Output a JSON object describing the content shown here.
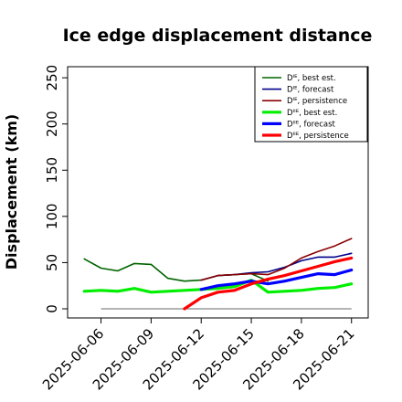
{
  "chart_data": {
    "type": "line",
    "title": "Ice edge displacement distance",
    "xlabel": "",
    "ylabel": "Displacement (km)",
    "ylim": [
      0,
      260
    ],
    "yticks": [
      0,
      50,
      100,
      150,
      200,
      250
    ],
    "xlim": [
      "2025-06-04",
      "2025-06-22"
    ],
    "xticks": [
      "2025-06-06",
      "2025-06-09",
      "2025-06-12",
      "2025-06-15",
      "2025-06-18",
      "2025-06-21"
    ],
    "highlight_tick": "2025-06-12",
    "highlight_color": "#228b22",
    "grid": false,
    "legend_position": "top-right",
    "zero_line": {
      "value": 0,
      "from": "2025-06-06",
      "to": "2025-06-21",
      "color": "#888888"
    },
    "series": [
      {
        "name": "Dᴵᴱ, best est.",
        "color": "#006400",
        "width": 1.6,
        "x": [
          "2025-06-05",
          "2025-06-06",
          "2025-06-07",
          "2025-06-08",
          "2025-06-09",
          "2025-06-10",
          "2025-06-11",
          "2025-06-12",
          "2025-06-13",
          "2025-06-14",
          "2025-06-15",
          "2025-06-16"
        ],
        "values": [
          54,
          44,
          41,
          49,
          48,
          33,
          30,
          31,
          36,
          37,
          38,
          30
        ]
      },
      {
        "name": "Dᴵᴱ, forecast",
        "color": "#00008b",
        "width": 1.6,
        "x": [
          "2025-06-12",
          "2025-06-13",
          "2025-06-14",
          "2025-06-15",
          "2025-06-16",
          "2025-06-17",
          "2025-06-18",
          "2025-06-19",
          "2025-06-20",
          "2025-06-21"
        ],
        "values": [
          31,
          36,
          37,
          39,
          40,
          45,
          52,
          56,
          56,
          60
        ]
      },
      {
        "name": "Dᴵᴱ, persistence",
        "color": "#8b0000",
        "width": 1.6,
        "x": [
          "2025-06-12",
          "2025-06-13",
          "2025-06-14",
          "2025-06-15",
          "2025-06-16",
          "2025-06-17",
          "2025-06-18",
          "2025-06-19",
          "2025-06-20",
          "2025-06-21"
        ],
        "values": [
          31,
          36,
          37,
          38,
          37,
          44,
          55,
          62,
          68,
          76
        ]
      },
      {
        "name": "Dᴵᴵᴱ, best est.",
        "color": "#00ee00",
        "width": 3.2,
        "x": [
          "2025-06-05",
          "2025-06-06",
          "2025-06-07",
          "2025-06-08",
          "2025-06-09",
          "2025-06-10",
          "2025-06-11",
          "2025-06-12",
          "2025-06-13",
          "2025-06-14",
          "2025-06-15",
          "2025-06-16",
          "2025-06-17",
          "2025-06-18",
          "2025-06-19",
          "2025-06-20",
          "2025-06-21"
        ],
        "values": [
          19,
          20,
          19,
          22,
          18,
          19,
          20,
          21,
          22,
          24,
          31,
          18,
          19,
          20,
          22,
          23,
          27
        ]
      },
      {
        "name": "Dᴵᴵᴱ, forecast",
        "color": "#0000ff",
        "width": 3.2,
        "x": [
          "2025-06-12",
          "2025-06-13",
          "2025-06-14",
          "2025-06-15",
          "2025-06-16",
          "2025-06-17",
          "2025-06-18",
          "2025-06-19",
          "2025-06-20",
          "2025-06-21"
        ],
        "values": [
          21,
          25,
          27,
          30,
          27,
          30,
          34,
          38,
          37,
          42
        ]
      },
      {
        "name": "Dᴵᴵᴱ, persistence",
        "color": "#ff0000",
        "width": 3.2,
        "x": [
          "2025-06-11",
          "2025-06-12",
          "2025-06-13",
          "2025-06-14",
          "2025-06-15",
          "2025-06-16",
          "2025-06-17",
          "2025-06-18",
          "2025-06-19",
          "2025-06-20",
          "2025-06-21"
        ],
        "values": [
          0,
          12,
          18,
          20,
          27,
          32,
          36,
          41,
          46,
          51,
          55
        ]
      }
    ]
  }
}
